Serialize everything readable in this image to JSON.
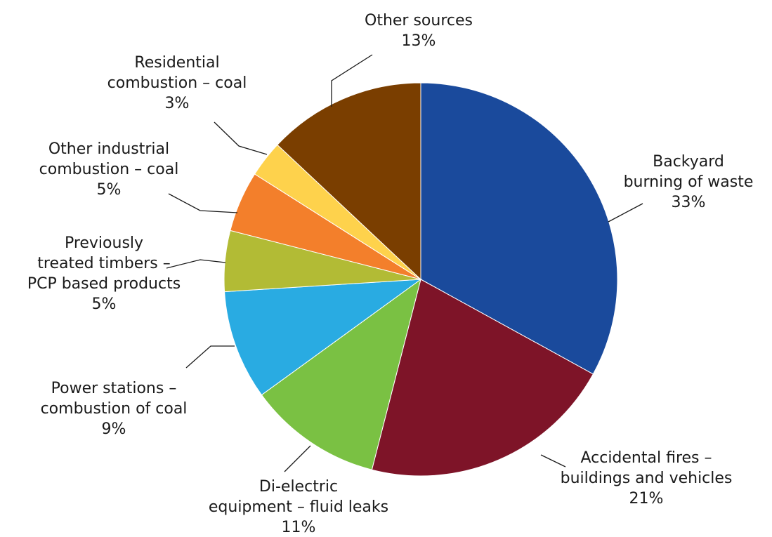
{
  "chart_data": {
    "type": "pie",
    "title": "",
    "start": "12 o'clock, clockwise",
    "legend": "none (direct labels with leader lines)",
    "slices": [
      {
        "label_lines": [
          "Backyard",
          "burning of waste"
        ],
        "pct": "33%",
        "value": 33,
        "color": "#1a4a9c"
      },
      {
        "label_lines": [
          "Accidental fires –",
          "buildings and vehicles"
        ],
        "pct": "21%",
        "value": 21,
        "color": "#7e1428"
      },
      {
        "label_lines": [
          "Di-electric",
          "equipment – fluid leaks"
        ],
        "pct": "11%",
        "value": 11,
        "color": "#7ac143"
      },
      {
        "label_lines": [
          "Power stations –",
          "combustion of coal"
        ],
        "pct": "9%",
        "value": 9,
        "color": "#29abe2"
      },
      {
        "label_lines": [
          "Previously",
          "treated timbers –",
          "PCP based products"
        ],
        "pct": "5%",
        "value": 5,
        "color": "#b2bb35"
      },
      {
        "label_lines": [
          "Other industrial",
          "combustion – coal"
        ],
        "pct": "5%",
        "value": 5,
        "color": "#f37f2b"
      },
      {
        "label_lines": [
          "Residential",
          "combustion – coal"
        ],
        "pct": "3%",
        "value": 3,
        "color": "#fed24c"
      },
      {
        "label_lines": [
          "Other sources"
        ],
        "pct": "13%",
        "value": 13,
        "color": "#7a3e00"
      }
    ]
  }
}
